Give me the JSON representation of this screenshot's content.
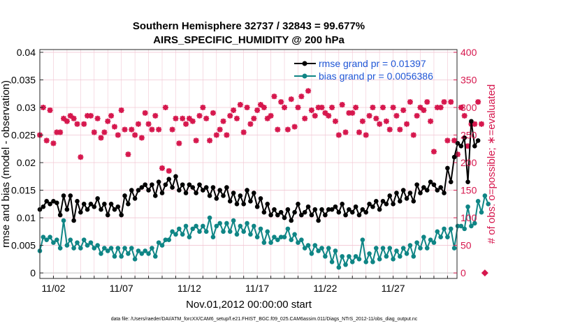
{
  "chart_data": {
    "type": "line",
    "title": "Southern Hemisphere 32737 / 32843 = 99.677%",
    "subtitle": "AIRS_SPECIFIC_HUMIDITY @ 200 hPa",
    "xlabel": "Nov.01,2012 00:00:00 start",
    "ylabel": "rmse and bias (model - observation)",
    "y2label": "# of obs: o=possible; ∗=evaluated",
    "x_tick_labels": [
      "11/02",
      "11/07",
      "11/12",
      "11/17",
      "11/22",
      "11/27"
    ],
    "x_tick_values": [
      2,
      7,
      12,
      17,
      22,
      27
    ],
    "xlim": [
      1,
      31.7
    ],
    "ylim": [
      -0.001,
      0.0405
    ],
    "y_ticks": [
      "0",
      "0.005",
      "0.01",
      "0.015",
      "0.02",
      "0.025",
      "0.03",
      "0.035",
      "0.04"
    ],
    "y2lim": [
      -10,
      405
    ],
    "y2_ticks": [
      "0",
      "50",
      "100",
      "150",
      "200",
      "250",
      "300",
      "350",
      "400"
    ],
    "legend_position": "top-right",
    "grid": true,
    "colors": {
      "rmse": "#000000",
      "bias": "#0f8585",
      "obs": "#d6174d",
      "legend": "#1f56d6"
    },
    "series": [
      {
        "name": "rmse grand pr = 0.01397",
        "axis": "left",
        "x_start": 1.0,
        "x_step": 0.25,
        "values": [
          0.0115,
          0.012,
          0.013,
          0.0125,
          0.013,
          0.0127,
          0.0105,
          0.014,
          0.0115,
          0.014,
          0.0095,
          0.013,
          0.011,
          0.0125,
          0.0115,
          0.0125,
          0.012,
          0.0135,
          0.0115,
          0.0125,
          0.0105,
          0.0125,
          0.0115,
          0.012,
          0.0105,
          0.014,
          0.0125,
          0.015,
          0.0135,
          0.015,
          0.0155,
          0.016,
          0.015,
          0.016,
          0.014,
          0.0165,
          0.0145,
          0.016,
          0.017,
          0.0155,
          0.0175,
          0.015,
          0.016,
          0.0145,
          0.016,
          0.0155,
          0.0145,
          0.016,
          0.015,
          0.0155,
          0.014,
          0.0155,
          0.0135,
          0.015,
          0.014,
          0.0155,
          0.013,
          0.0145,
          0.0125,
          0.014,
          0.0125,
          0.015,
          0.013,
          0.0145,
          0.012,
          0.0135,
          0.011,
          0.0125,
          0.0105,
          0.0115,
          0.0105,
          0.011,
          0.01,
          0.0115,
          0.0095,
          0.011,
          0.0125,
          0.0105,
          0.011,
          0.012,
          0.0105,
          0.0115,
          0.0095,
          0.0115,
          0.0105,
          0.0115,
          0.0115,
          0.012,
          0.011,
          0.0125,
          0.0105,
          0.0115,
          0.011,
          0.012,
          0.0105,
          0.0115,
          0.011,
          0.0125,
          0.012,
          0.013,
          0.0115,
          0.013,
          0.0125,
          0.014,
          0.0125,
          0.0145,
          0.013,
          0.015,
          0.0135,
          0.0145,
          0.013,
          0.016,
          0.0145,
          0.0155,
          0.015,
          0.0165,
          0.016,
          0.015,
          0.0155,
          0.0145,
          0.019,
          0.0165,
          0.021,
          0.0235,
          0.023,
          0.0245,
          0.0165,
          0.0275,
          0.023,
          0.024
        ]
      },
      {
        "name": "bias grand pr = 0.0056386",
        "axis": "left",
        "x_start": 1.0,
        "x_step": 0.25,
        "values": [
          0.004,
          0.0065,
          0.006,
          0.0065,
          0.0055,
          0.006,
          0.0045,
          0.0095,
          0.005,
          0.006,
          0.0045,
          0.0055,
          0.0045,
          0.006,
          0.005,
          0.0055,
          0.0045,
          0.005,
          0.0035,
          0.0045,
          0.004,
          0.0045,
          0.003,
          0.0045,
          0.003,
          0.0045,
          0.0035,
          0.0045,
          0.0025,
          0.004,
          0.0035,
          0.004,
          0.0035,
          0.0045,
          0.003,
          0.0055,
          0.005,
          0.006,
          0.006,
          0.0075,
          0.007,
          0.008,
          0.007,
          0.0085,
          0.0065,
          0.008,
          0.0085,
          0.0075,
          0.0085,
          0.0075,
          0.01,
          0.0065,
          0.0085,
          0.009,
          0.0075,
          0.009,
          0.0075,
          0.0095,
          0.007,
          0.0085,
          0.0075,
          0.009,
          0.007,
          0.0085,
          0.0065,
          0.008,
          0.0055,
          0.0075,
          0.0055,
          0.0065,
          0.006,
          0.0065,
          0.0065,
          0.008,
          0.006,
          0.007,
          0.0055,
          0.006,
          0.0045,
          0.005,
          0.0035,
          0.005,
          0.004,
          0.0045,
          0.003,
          0.0045,
          0.002,
          0.004,
          0.001,
          0.003,
          0.0015,
          0.003,
          0.002,
          0.003,
          0.0025,
          0.006,
          0.002,
          0.0035,
          0.002,
          0.0045,
          0.0025,
          0.0045,
          0.003,
          0.0045,
          0.0025,
          0.004,
          0.003,
          0.0045,
          0.0035,
          0.005,
          0.003,
          0.0055,
          0.0045,
          0.0065,
          0.0045,
          0.006,
          0.0055,
          0.0075,
          0.0065,
          0.008,
          0.0065,
          0.008,
          0.0045,
          0.0085,
          0.0085,
          0.008,
          0.012,
          0.0085,
          0.009,
          0.013,
          0.011,
          0.014,
          0.0125
        ]
      },
      {
        "name": "# of obs",
        "axis": "right",
        "x_start": 1.0,
        "x_step": 0.25,
        "values": [
          250,
          300,
          240,
          295,
          235,
          255,
          255,
          280,
          275,
          285,
          280,
          270,
          210,
          270,
          285,
          285,
          255,
          280,
          245,
          255,
          275,
          285,
          265,
          250,
          295,
          260,
          215,
          260,
          250,
          270,
          245,
          290,
          270,
          260,
          285,
          260,
          190,
          300,
          185,
          260,
          280,
          235,
          280,
          270,
          280,
          275,
          240,
          285,
          300,
          280,
          240,
          290,
          250,
          260,
          275,
          250,
          285,
          295,
          280,
          305,
          255,
          300,
          270,
          280,
          295,
          305,
          300,
          280,
          285,
          320,
          260,
          310,
          300,
          260,
          315,
          265,
          300,
          320,
          280,
          330,
          295,
          285,
          300,
          300,
          290,
          285,
          300,
          275,
          250,
          305,
          255,
          290,
          290,
          300,
          255,
          275,
          250,
          285,
          300,
          280,
          270,
          300,
          275,
          260,
          300,
          285,
          260,
          295,
          270,
          310,
          250,
          285,
          300,
          295,
          310,
          275,
          220,
          300,
          300,
          310,
          240,
          310,
          240,
          215,
          300,
          285,
          230,
          270,
          270,
          310,
          270
        ],
        "possible_last": 0
      }
    ]
  },
  "footnote": "data file: /Users/raeder/DAI/ATM_forcXX/CAM6_setup/f.e21.FHIST_BGC.f09_025.CAM6assim.011/Diags_NTrS_2012-11/obs_diag_output.nc"
}
